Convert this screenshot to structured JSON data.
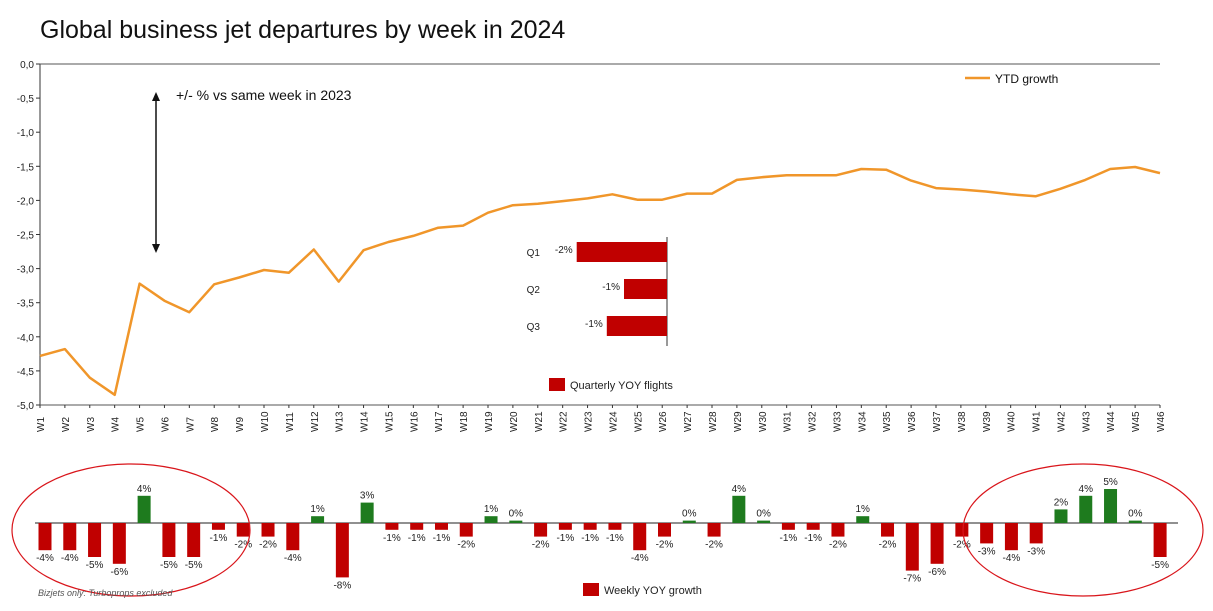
{
  "chart_data": [
    {
      "type": "line",
      "title": "Global business jet departures by week in 2024",
      "annotation": "+/- %  vs same week in 2023",
      "categories": [
        "W1",
        "W2",
        "W3",
        "W4",
        "W5",
        "W6",
        "W7",
        "W8",
        "W9",
        "W10",
        "W11",
        "W12",
        "W13",
        "W14",
        "W15",
        "W16",
        "W17",
        "W18",
        "W19",
        "W20",
        "W21",
        "W22",
        "W23",
        "W24",
        "W25",
        "W26",
        "W27",
        "W28",
        "W29",
        "W30",
        "W31",
        "W32",
        "W33",
        "W34",
        "W35",
        "W36",
        "W37",
        "W38",
        "W39",
        "W40",
        "W41",
        "W42",
        "W43",
        "W44",
        "W45",
        "W46"
      ],
      "ylim": [
        -5.0,
        0.0
      ],
      "yticks": [
        "0,0",
        "-0,5",
        "-1,0",
        "-1,5",
        "-2,0",
        "-2,5",
        "-3,0",
        "-3,5",
        "-4,0",
        "-4,5",
        "-5,0"
      ],
      "series": [
        {
          "name": "YTD growth",
          "color": "#F0962A",
          "values": [
            -4.28,
            -4.18,
            -4.6,
            -4.85,
            -3.22,
            -3.47,
            -3.64,
            -3.23,
            -3.13,
            -3.02,
            -3.06,
            -2.72,
            -3.19,
            -2.73,
            -2.61,
            -2.52,
            -2.4,
            -2.37,
            -2.18,
            -2.07,
            -2.05,
            -2.01,
            -1.97,
            -1.91,
            -1.99,
            -1.99,
            -1.9,
            -1.9,
            -1.7,
            -1.66,
            -1.63,
            -1.63,
            -1.63,
            -1.54,
            -1.55,
            -1.71,
            -1.82,
            -1.84,
            -1.87,
            -1.91,
            -1.94,
            -1.83,
            -1.7,
            -1.54,
            -1.51,
            -1.6
          ]
        }
      ],
      "legend_position": "top-right"
    },
    {
      "type": "bar",
      "orientation": "horizontal",
      "categories": [
        "Q1",
        "Q2",
        "Q3"
      ],
      "values": [
        -2.1,
        -1.0,
        -1.4
      ],
      "labels": [
        "-2%",
        "-1%",
        "-1%"
      ],
      "series_name": "Quarterly YOY flights",
      "color": "#C00000"
    },
    {
      "type": "bar",
      "categories": [
        "W1",
        "W2",
        "W3",
        "W4",
        "W5",
        "W6",
        "W7",
        "W8",
        "W9",
        "W10",
        "W11",
        "W12",
        "W13",
        "W14",
        "W15",
        "W16",
        "W17",
        "W18",
        "W19",
        "W20",
        "W21",
        "W22",
        "W23",
        "W24",
        "W25",
        "W26",
        "W27",
        "W28",
        "W29",
        "W30",
        "W31",
        "W32",
        "W33",
        "W34",
        "W35",
        "W36",
        "W37",
        "W38",
        "W39",
        "W40",
        "W41",
        "W42",
        "W43",
        "W44",
        "W45",
        "W46"
      ],
      "values": [
        -4,
        -4,
        -5,
        -6,
        4,
        -5,
        -5,
        -1,
        -2,
        -2,
        -4,
        1,
        -8,
        3,
        -1,
        -1,
        -1,
        -2,
        1,
        0,
        -2,
        -1,
        -1,
        -1,
        -4,
        -2,
        0,
        -2,
        4,
        0,
        -1,
        -1,
        -2,
        1,
        -2,
        -7,
        -6,
        -2,
        -3,
        -4,
        -3,
        2,
        4,
        5,
        0,
        -5
      ],
      "labels": [
        "-4%",
        "-4%",
        "-5%",
        "-6%",
        "4%",
        "-5%",
        "-5%",
        "-1%",
        "-2%",
        "-2%",
        "-4%",
        "1%",
        "-8%",
        "3%",
        "-1%",
        "-1%",
        "-1%",
        "-2%",
        "1%",
        "0%",
        "-2%",
        "-1%",
        "-1%",
        "-1%",
        "-4%",
        "-2%",
        "0%",
        "-2%",
        "4%",
        "0%",
        "-1%",
        "-1%",
        "-2%",
        "1%",
        "-2%",
        "-7%",
        "-6%",
        "-2%",
        "-3%",
        "-4%",
        "-3%",
        "2%",
        "4%",
        "5%",
        "0%",
        "-5%"
      ],
      "series_name": "Weekly YOY growth",
      "colors": {
        "negative": "#C00000",
        "positive": "#1E7B1E"
      }
    }
  ],
  "footnote": "Bizjets only: Turboprops excluded",
  "highlight_color": "#D9151B"
}
